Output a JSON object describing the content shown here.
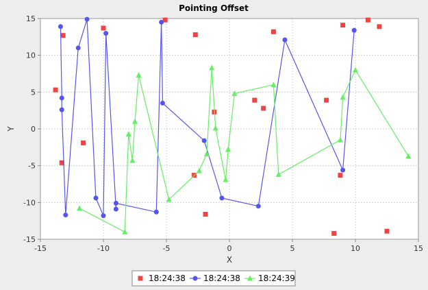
{
  "chart_data": {
    "type": "scatter",
    "title": "Pointing Offset",
    "xlabel": "X",
    "ylabel": "Y",
    "xlim": [
      -15,
      15
    ],
    "ylim": [
      -15,
      15
    ],
    "x_ticks": [
      -15,
      -10,
      -5,
      0,
      5,
      10,
      15
    ],
    "y_ticks": [
      -15,
      -10,
      -5,
      0,
      5,
      10,
      15
    ],
    "grid": true,
    "legend_position": "bottom",
    "series": [
      {
        "name": "18:24:38",
        "mode": "markers",
        "marker": "square",
        "color": "#ee4444",
        "points": [
          [
            -13.8,
            5.3
          ],
          [
            -13.2,
            12.7
          ],
          [
            -13.3,
            -4.6
          ],
          [
            -11.6,
            -1.9
          ],
          [
            -10.0,
            13.7
          ],
          [
            -5.1,
            14.8
          ],
          [
            -2.8,
            -6.3
          ],
          [
            -2.7,
            12.8
          ],
          [
            -1.9,
            -11.6
          ],
          [
            -1.2,
            2.3
          ],
          [
            2.0,
            3.9
          ],
          [
            2.7,
            2.8
          ],
          [
            3.5,
            13.2
          ],
          [
            7.7,
            3.9
          ],
          [
            8.3,
            -14.2
          ],
          [
            8.8,
            -6.3
          ],
          [
            9.0,
            14.1
          ],
          [
            11.0,
            14.8
          ],
          [
            11.9,
            13.9
          ],
          [
            12.5,
            -13.9
          ]
        ]
      },
      {
        "name": "18:24:38",
        "mode": "lines+markers",
        "marker": "circle",
        "color": "#5555ee",
        "points": [
          [
            -13.4,
            13.9
          ],
          [
            -13.3,
            4.2
          ],
          [
            -13.3,
            2.6
          ],
          [
            -13.0,
            -11.7
          ],
          [
            -12.0,
            11.0
          ],
          [
            -11.3,
            14.9
          ],
          [
            -10.6,
            -9.4
          ],
          [
            -10.0,
            -11.8
          ],
          [
            -9.8,
            13.0
          ],
          [
            -9.0,
            -10.9
          ],
          [
            -9.0,
            -10.1
          ],
          [
            -5.8,
            -11.3
          ],
          [
            -5.4,
            14.5
          ],
          [
            -5.3,
            3.5
          ],
          [
            -2.0,
            -1.6
          ],
          [
            -0.6,
            -9.4
          ],
          [
            2.3,
            -10.5
          ],
          [
            4.4,
            12.1
          ],
          [
            9.0,
            -5.6
          ],
          [
            9.9,
            13.4
          ]
        ]
      },
      {
        "name": "18:24:39",
        "mode": "lines+markers",
        "marker": "triangle",
        "color": "#66ee66",
        "points": [
          [
            -11.9,
            -10.8
          ],
          [
            -8.3,
            -14.0
          ],
          [
            -8.0,
            -0.7
          ],
          [
            -7.7,
            -4.3
          ],
          [
            -7.5,
            1.0
          ],
          [
            -7.2,
            7.3
          ],
          [
            -4.8,
            -9.6
          ],
          [
            -2.4,
            -5.7
          ],
          [
            -1.8,
            -3.4
          ],
          [
            -1.4,
            8.3
          ],
          [
            -1.1,
            0.1
          ],
          [
            -0.3,
            -6.9
          ],
          [
            -0.1,
            -2.8
          ],
          [
            0.4,
            4.8
          ],
          [
            3.5,
            6.0
          ],
          [
            3.9,
            -6.2
          ],
          [
            8.8,
            -1.5
          ],
          [
            9.0,
            4.3
          ],
          [
            10.0,
            8.0
          ],
          [
            14.2,
            -3.7
          ]
        ]
      }
    ]
  }
}
